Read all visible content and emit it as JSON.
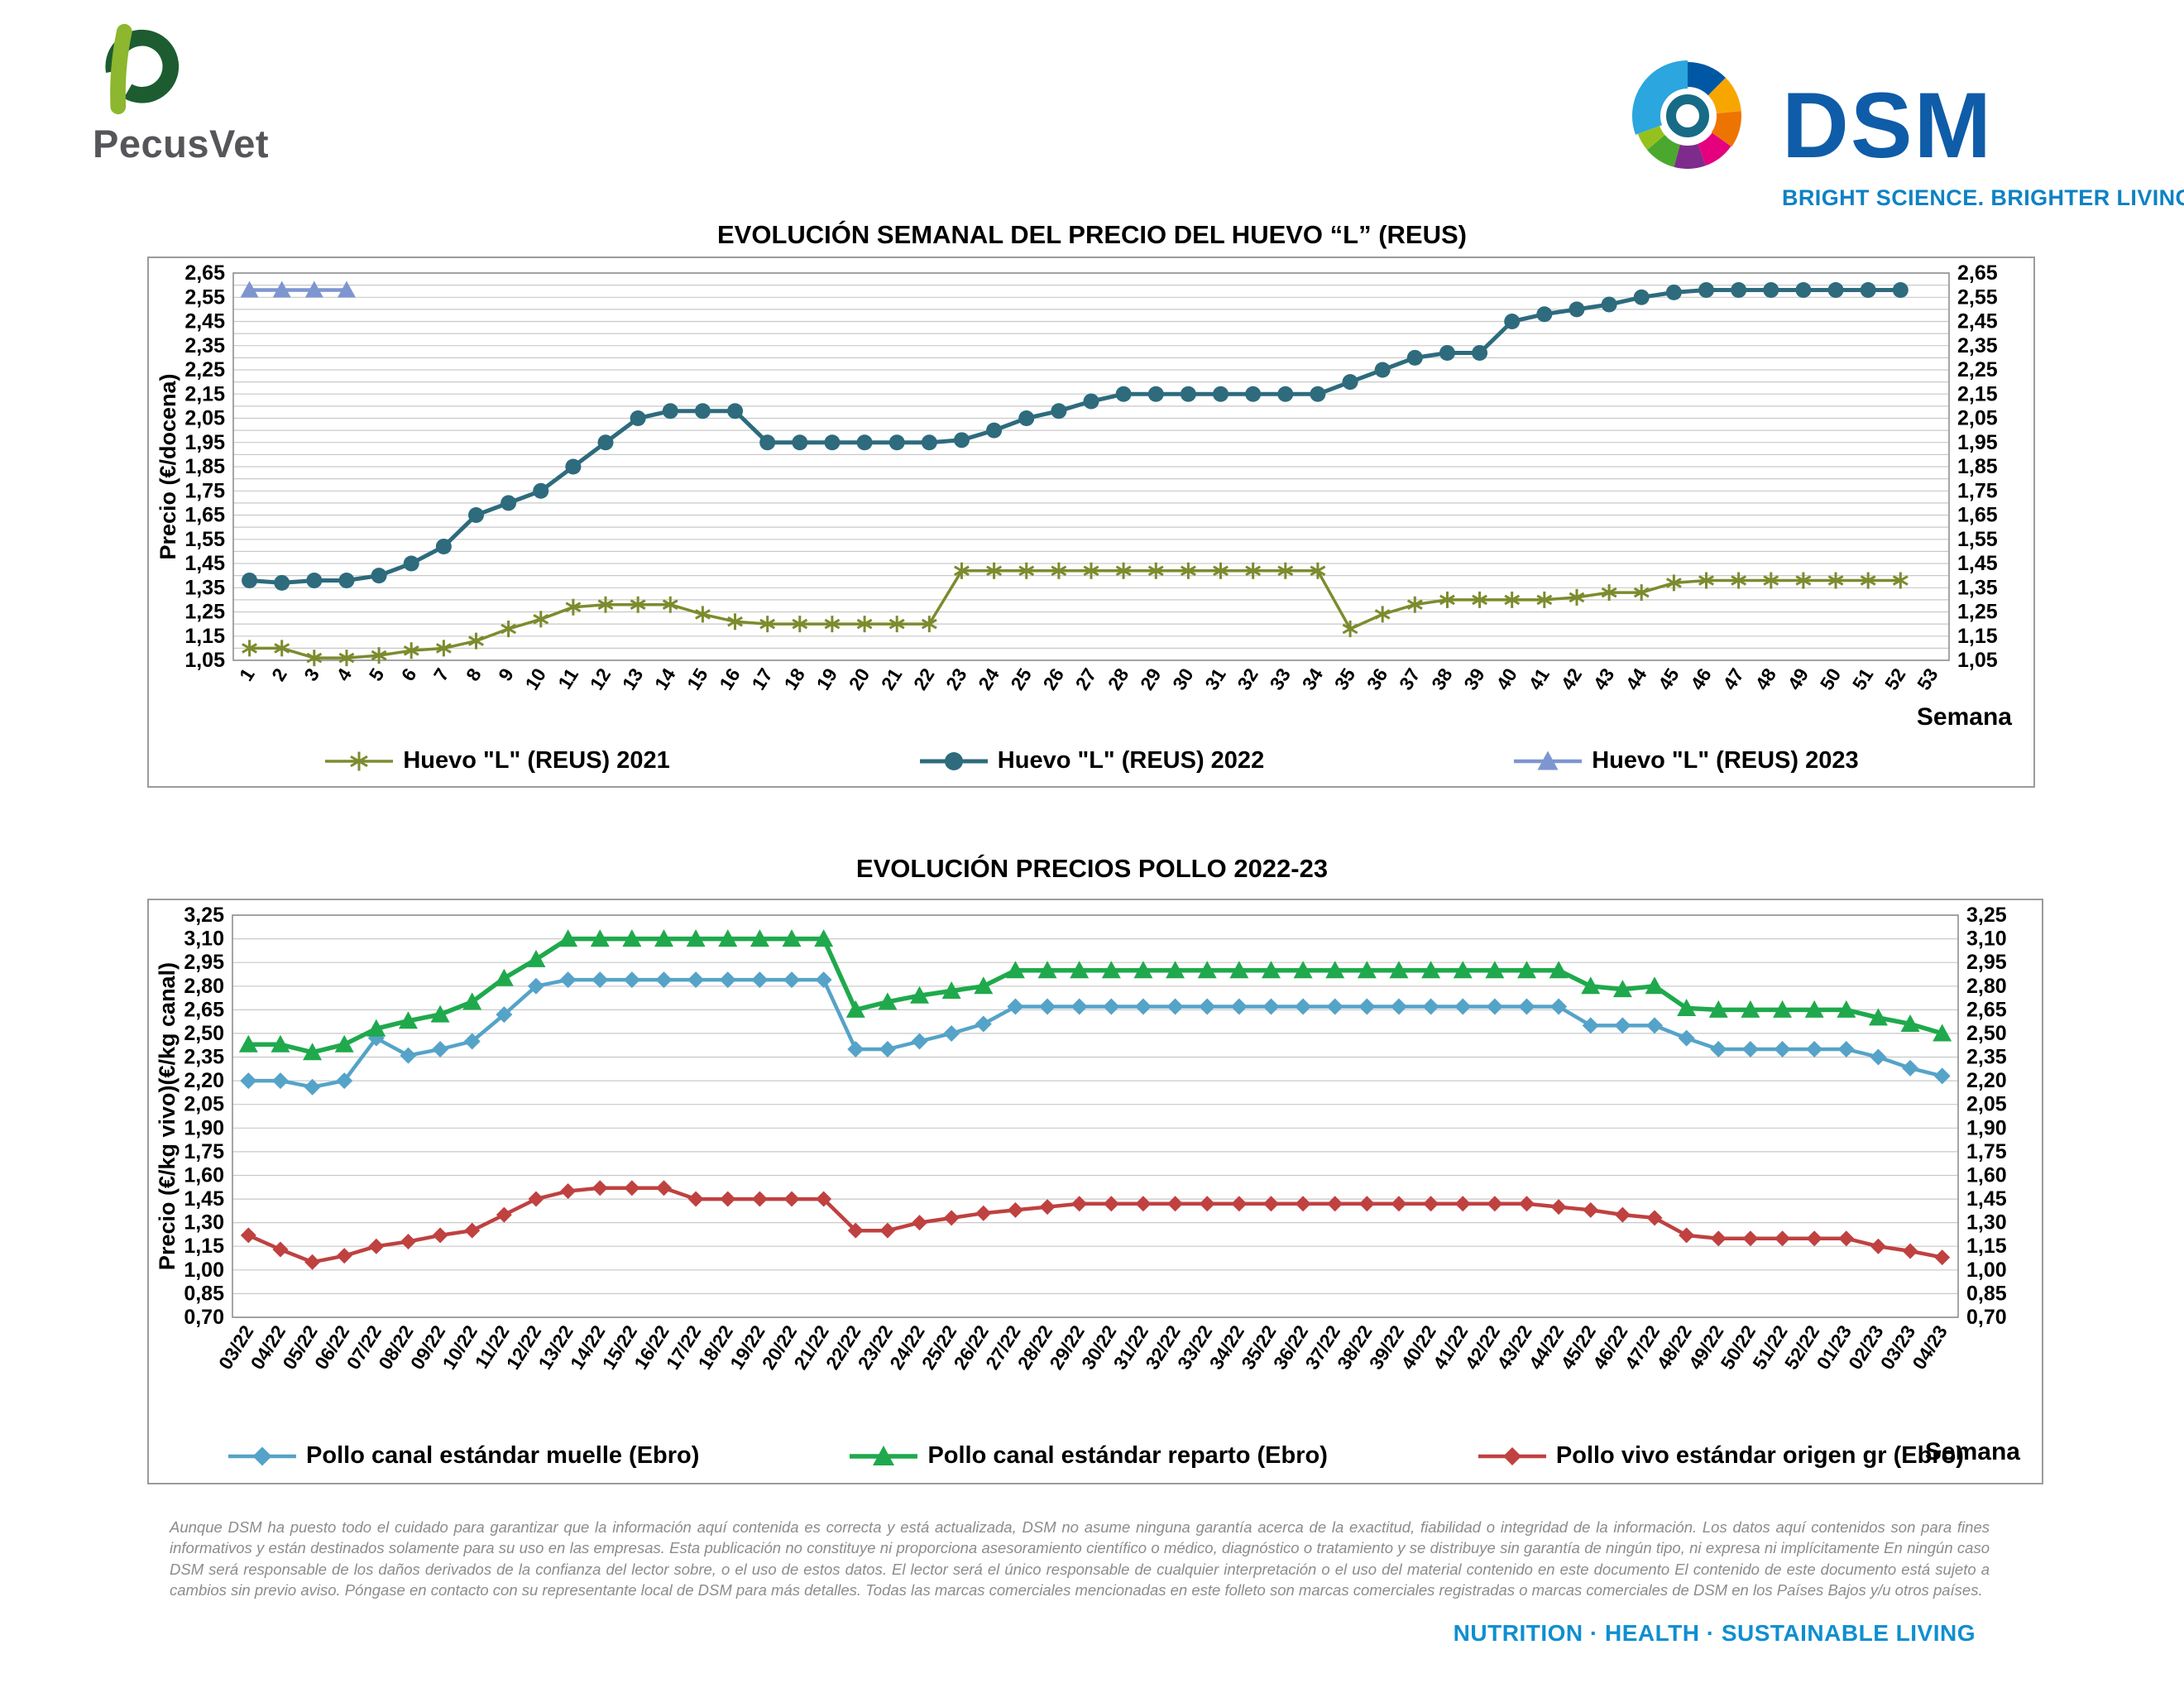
{
  "header": {
    "pecusvet": "PecusVet",
    "dsm": "DSM",
    "dsm_tagline": "BRIGHT SCIENCE. BRIGHTER LIVING."
  },
  "footer": {
    "tagline": "NUTRITION  ·  HEALTH  ·  SUSTAINABLE LIVING",
    "disclaimer": "Aunque DSM ha puesto todo el cuidado para garantizar que la información aquí contenida es correcta y está actualizada, DSM no asume ninguna garantía acerca de la exactitud, fiabilidad o integridad de la información. Los datos aquí contenidos son para fines informativos y están destinados solamente para su uso en las empresas. Esta publicación no constituye ni proporciona asesoramiento científico o médico, diagnóstico o tratamiento y se distribuye sin garantía de ningún tipo, ni expresa ni implícitamente En ningún caso DSM será responsable de los daños derivados de la confianza del lector sobre, o el uso de estos datos. El lector será el único responsable de cualquier interpretación o el uso del material contenido en este documento El contenido de este documento está sujeto a cambios sin previo aviso. Póngase en contacto con su representante local de DSM para más detalles. Todas las marcas comerciales mencionadas en este folleto son marcas comerciales registradas o marcas comerciales de DSM en los Países Bajos y/u otros países."
  },
  "chart_data": [
    {
      "type": "line",
      "title": "EVOLUCIÓN SEMANAL DEL PRECIO DEL HUEVO “L” (REUS)",
      "ylabel": "Precio (€/docena)",
      "xlabel": "Semana",
      "ylim": [
        1.05,
        2.65
      ],
      "ytick_step": 0.1,
      "grid_step": 0.05,
      "legend_position": "bottom",
      "categories": [
        "1",
        "2",
        "3",
        "4",
        "5",
        "6",
        "7",
        "8",
        "9",
        "10",
        "11",
        "12",
        "13",
        "14",
        "15",
        "16",
        "17",
        "18",
        "19",
        "20",
        "21",
        "22",
        "23",
        "24",
        "25",
        "26",
        "27",
        "28",
        "29",
        "30",
        "31",
        "32",
        "33",
        "34",
        "35",
        "36",
        "37",
        "38",
        "39",
        "40",
        "41",
        "42",
        "43",
        "44",
        "45",
        "46",
        "47",
        "48",
        "49",
        "50",
        "51",
        "52",
        "53"
      ],
      "series": [
        {
          "name": "Huevo \"L\" (REUS) 2021",
          "color": "#7d8b2e",
          "marker": "star",
          "values": [
            1.1,
            1.1,
            1.06,
            1.06,
            1.07,
            1.09,
            1.1,
            1.13,
            1.18,
            1.22,
            1.27,
            1.28,
            1.28,
            1.28,
            1.24,
            1.21,
            1.2,
            1.2,
            1.2,
            1.2,
            1.2,
            1.2,
            1.42,
            1.42,
            1.42,
            1.42,
            1.42,
            1.42,
            1.42,
            1.42,
            1.42,
            1.42,
            1.42,
            1.42,
            1.18,
            1.24,
            1.28,
            1.3,
            1.3,
            1.3,
            1.3,
            1.31,
            1.33,
            1.33,
            1.37,
            1.38,
            1.38,
            1.38,
            1.38,
            1.38,
            1.38,
            1.38
          ]
        },
        {
          "name": "Huevo \"L\" (REUS) 2022",
          "color": "#2d6b7d",
          "marker": "circle",
          "values": [
            1.38,
            1.37,
            1.38,
            1.38,
            1.4,
            1.45,
            1.52,
            1.65,
            1.7,
            1.75,
            1.85,
            1.95,
            2.05,
            2.08,
            2.08,
            2.08,
            1.95,
            1.95,
            1.95,
            1.95,
            1.95,
            1.95,
            1.96,
            2.0,
            2.05,
            2.08,
            2.12,
            2.15,
            2.15,
            2.15,
            2.15,
            2.15,
            2.15,
            2.15,
            2.2,
            2.25,
            2.3,
            2.32,
            2.32,
            2.45,
            2.48,
            2.5,
            2.52,
            2.55,
            2.57,
            2.58,
            2.58,
            2.58,
            2.58,
            2.58,
            2.58,
            2.58
          ]
        },
        {
          "name": "Huevo \"L\" (REUS) 2023",
          "color": "#7e96d0",
          "marker": "triangle",
          "values": [
            2.58,
            2.58,
            2.58,
            2.58
          ]
        }
      ]
    },
    {
      "type": "line",
      "title": "EVOLUCIÓN PRECIOS POLLO 2022-23",
      "ylabel": "Precio (€/kg vivo)(€/kg canal)",
      "xlabel": "Semana",
      "ylim": [
        0.7,
        3.25
      ],
      "ytick_step": 0.15,
      "grid_step": 0.15,
      "legend_position": "bottom",
      "categories": [
        "03/22",
        "04/22",
        "05/22",
        "06/22",
        "07/22",
        "08/22",
        "09/22",
        "10/22",
        "11/22",
        "12/22",
        "13/22",
        "14/22",
        "15/22",
        "16/22",
        "17/22",
        "18/22",
        "19/22",
        "20/22",
        "21/22",
        "22/22",
        "23/22",
        "24/22",
        "25/22",
        "26/22",
        "27/22",
        "28/22",
        "29/22",
        "30/22",
        "31/22",
        "32/22",
        "33/22",
        "34/22",
        "35/22",
        "36/22",
        "37/22",
        "38/22",
        "39/22",
        "40/22",
        "41/22",
        "42/22",
        "43/22",
        "44/22",
        "45/22",
        "46/22",
        "47/22",
        "48/22",
        "49/22",
        "50/22",
        "51/22",
        "52/22",
        "01/23",
        "02/23",
        "03/23",
        "04/23"
      ],
      "series": [
        {
          "name": "Pollo canal estándar muelle (Ebro)",
          "color": "#55a3c8",
          "marker": "diamond",
          "values": [
            2.2,
            2.2,
            2.16,
            2.2,
            2.47,
            2.36,
            2.4,
            2.45,
            2.62,
            2.8,
            2.84,
            2.84,
            2.84,
            2.84,
            2.84,
            2.84,
            2.84,
            2.84,
            2.84,
            2.4,
            2.4,
            2.45,
            2.5,
            2.56,
            2.67,
            2.67,
            2.67,
            2.67,
            2.67,
            2.67,
            2.67,
            2.67,
            2.67,
            2.67,
            2.67,
            2.67,
            2.67,
            2.67,
            2.67,
            2.67,
            2.67,
            2.67,
            2.55,
            2.55,
            2.55,
            2.47,
            2.4,
            2.4,
            2.4,
            2.4,
            2.4,
            2.35,
            2.28,
            2.23
          ]
        },
        {
          "name": "Pollo canal estándar reparto (Ebro)",
          "color": "#1fa94c",
          "marker": "triangle",
          "values": [
            2.43,
            2.43,
            2.38,
            2.43,
            2.53,
            2.58,
            2.62,
            2.7,
            2.85,
            2.97,
            3.1,
            3.1,
            3.1,
            3.1,
            3.1,
            3.1,
            3.1,
            3.1,
            3.1,
            2.65,
            2.7,
            2.74,
            2.77,
            2.8,
            2.9,
            2.9,
            2.9,
            2.9,
            2.9,
            2.9,
            2.9,
            2.9,
            2.9,
            2.9,
            2.9,
            2.9,
            2.9,
            2.9,
            2.9,
            2.9,
            2.9,
            2.9,
            2.8,
            2.78,
            2.8,
            2.66,
            2.65,
            2.65,
            2.65,
            2.65,
            2.65,
            2.6,
            2.56,
            2.5
          ]
        },
        {
          "name": "Pollo vivo estándar origen gr (Ebro)",
          "color": "#bf4140",
          "marker": "diamond",
          "values": [
            1.22,
            1.13,
            1.05,
            1.09,
            1.15,
            1.18,
            1.22,
            1.25,
            1.35,
            1.45,
            1.5,
            1.52,
            1.52,
            1.52,
            1.45,
            1.45,
            1.45,
            1.45,
            1.45,
            1.25,
            1.25,
            1.3,
            1.33,
            1.36,
            1.38,
            1.4,
            1.42,
            1.42,
            1.42,
            1.42,
            1.42,
            1.42,
            1.42,
            1.42,
            1.42,
            1.42,
            1.42,
            1.42,
            1.42,
            1.42,
            1.42,
            1.4,
            1.38,
            1.35,
            1.33,
            1.22,
            1.2,
            1.2,
            1.2,
            1.2,
            1.2,
            1.15,
            1.12,
            1.08
          ]
        }
      ]
    }
  ]
}
